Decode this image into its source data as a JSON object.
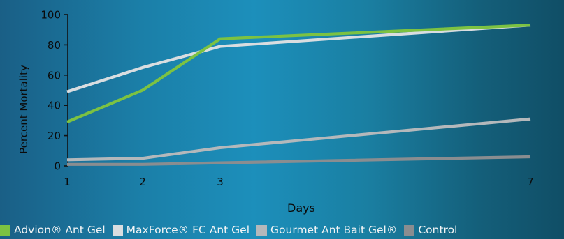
{
  "chart_data": {
    "type": "line",
    "x": [
      1,
      2,
      3,
      7
    ],
    "xlabel": "Days",
    "ylabel": "Percent Mortality",
    "x_ticks": [
      "1",
      "2",
      "3",
      "7"
    ],
    "y_ticks": [
      "0",
      "20",
      "40",
      "60",
      "80",
      "100"
    ],
    "ylim": [
      0,
      100
    ],
    "grid": false,
    "legend_position": "bottom",
    "series": [
      {
        "name": "Advion® Ant Gel",
        "color": "#7cc242",
        "values": [
          29,
          50,
          84,
          93
        ]
      },
      {
        "name": "MaxForce® FC Ant Gel",
        "color": "#d9dde0",
        "values": [
          49,
          65,
          79,
          93
        ]
      },
      {
        "name": "Gourmet Ant Bait Gel®",
        "color": "#b4b8bb",
        "values": [
          4,
          5,
          12,
          31
        ]
      },
      {
        "name": "Control",
        "color": "#8a8d90",
        "values": [
          1,
          1,
          2,
          6
        ]
      }
    ]
  }
}
